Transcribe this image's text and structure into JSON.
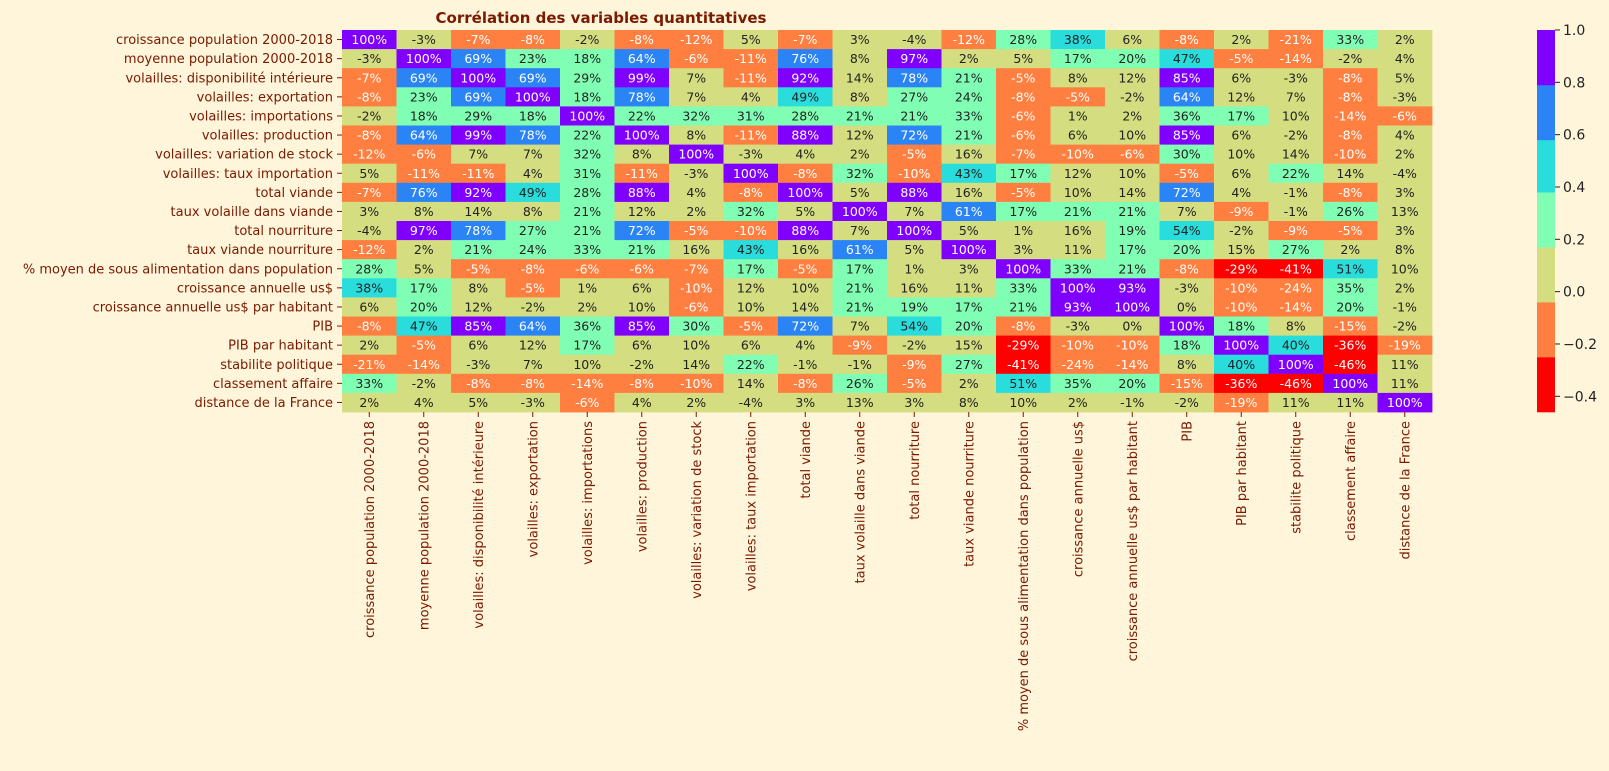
{
  "chart_data": {
    "type": "heatmap",
    "title": "Corrélation des variables quantitatives",
    "xlabel": "",
    "ylabel": "",
    "value_format": "percent",
    "label_color": "#7a1a00",
    "background": "#fff5da",
    "variables": [
      "croissance population 2000-2018",
      "moyenne population 2000-2018",
      "volailles: disponibilité intérieure",
      "volailles: exportation",
      "volailles: importations",
      "volailles: production",
      "volailles: variation de stock",
      "volailles: taux importation",
      "total viande",
      "taux volaille dans viande",
      "total nourriture",
      "taux viande nourriture",
      "% moyen de sous alimentation dans population",
      "croissance annuelle us$",
      "croissance annuelle us$ par habitant",
      "PIB",
      "PIB par habitant",
      "stabilite politique",
      "classement affaire",
      "distance de la France"
    ],
    "values": [
      [
        100,
        -3,
        -7,
        -8,
        -2,
        -8,
        -12,
        5,
        -7,
        3,
        -4,
        -12,
        28,
        38,
        6,
        -8,
        2,
        -21,
        33,
        2
      ],
      [
        -3,
        100,
        69,
        23,
        18,
        64,
        -6,
        -11,
        76,
        8,
        97,
        2,
        5,
        17,
        20,
        47,
        -5,
        -14,
        -2,
        4
      ],
      [
        -7,
        69,
        100,
        69,
        29,
        99,
        7,
        -11,
        92,
        14,
        78,
        21,
        -5,
        8,
        12,
        85,
        6,
        -3,
        -8,
        5
      ],
      [
        -8,
        23,
        69,
        100,
        18,
        78,
        7,
        4,
        49,
        8,
        27,
        24,
        -8,
        -5,
        -2,
        64,
        12,
        7,
        -8,
        -3
      ],
      [
        -2,
        18,
        29,
        18,
        100,
        22,
        32,
        31,
        28,
        21,
        21,
        33,
        -6,
        1,
        2,
        36,
        17,
        10,
        -14,
        -6
      ],
      [
        -8,
        64,
        99,
        78,
        22,
        100,
        8,
        -11,
        88,
        12,
        72,
        21,
        -6,
        6,
        10,
        85,
        6,
        -2,
        -8,
        4
      ],
      [
        -12,
        -6,
        7,
        7,
        32,
        8,
        100,
        -3,
        4,
        2,
        -5,
        16,
        -7,
        -10,
        -6,
        30,
        10,
        14,
        -10,
        2
      ],
      [
        5,
        -11,
        -11,
        4,
        31,
        -11,
        -3,
        100,
        -8,
        32,
        -10,
        43,
        17,
        12,
        10,
        -5,
        6,
        22,
        14,
        -4
      ],
      [
        -7,
        76,
        92,
        49,
        28,
        88,
        4,
        -8,
        100,
        5,
        88,
        16,
        -5,
        10,
        14,
        72,
        4,
        -1,
        -8,
        3
      ],
      [
        3,
        8,
        14,
        8,
        21,
        12,
        2,
        32,
        5,
        100,
        7,
        61,
        17,
        21,
        21,
        7,
        -9,
        -1,
        26,
        13
      ],
      [
        -4,
        97,
        78,
        27,
        21,
        72,
        -5,
        -10,
        88,
        7,
        100,
        5,
        1,
        16,
        19,
        54,
        -2,
        -9,
        -5,
        3
      ],
      [
        -12,
        2,
        21,
        24,
        33,
        21,
        16,
        43,
        16,
        61,
        5,
        100,
        3,
        11,
        17,
        20,
        15,
        27,
        2,
        8
      ],
      [
        28,
        5,
        -5,
        -8,
        -6,
        -6,
        -7,
        17,
        -5,
        17,
        1,
        3,
        100,
        33,
        21,
        -8,
        -29,
        -41,
        51,
        10
      ],
      [
        38,
        17,
        8,
        -5,
        1,
        6,
        -10,
        12,
        10,
        21,
        16,
        11,
        33,
        100,
        93,
        -3,
        -10,
        -24,
        35,
        2
      ],
      [
        6,
        20,
        12,
        -2,
        2,
        10,
        -6,
        10,
        14,
        21,
        19,
        17,
        21,
        93,
        100,
        0,
        -10,
        -14,
        20,
        -1
      ],
      [
        -8,
        47,
        85,
        64,
        36,
        85,
        30,
        -5,
        72,
        7,
        54,
        20,
        -8,
        -3,
        0,
        100,
        18,
        8,
        -15,
        -2
      ],
      [
        2,
        -5,
        6,
        12,
        17,
        6,
        10,
        6,
        4,
        -9,
        -2,
        15,
        -29,
        -10,
        -10,
        18,
        100,
        40,
        -36,
        -19
      ],
      [
        -21,
        -14,
        -3,
        7,
        10,
        -2,
        14,
        22,
        -1,
        -1,
        -9,
        27,
        -41,
        -24,
        -14,
        8,
        40,
        100,
        -46,
        11
      ],
      [
        33,
        -2,
        -8,
        -8,
        -14,
        -8,
        -10,
        14,
        -8,
        26,
        -5,
        2,
        51,
        35,
        20,
        -15,
        -36,
        -46,
        100,
        11
      ],
      [
        2,
        4,
        5,
        -3,
        -6,
        4,
        2,
        -4,
        3,
        13,
        3,
        8,
        10,
        2,
        -1,
        -2,
        -19,
        11,
        11,
        100
      ]
    ],
    "colorbar": {
      "vmin": -0.46,
      "vmax": 1.0,
      "ticks": [
        "1.0",
        "0.8",
        "0.6",
        "0.4",
        "0.2",
        "0.0",
        "−0.2",
        "−0.4"
      ],
      "tick_values": [
        1.0,
        0.8,
        0.6,
        0.4,
        0.2,
        0.0,
        -0.2,
        -0.4
      ],
      "bins": [
        {
          "from": -0.46,
          "to": -0.25,
          "color": "#ff0000"
        },
        {
          "from": -0.25,
          "to": -0.04,
          "color": "#ff7f40"
        },
        {
          "from": -0.04,
          "to": 0.17,
          "color": "#d4dd80"
        },
        {
          "from": 0.17,
          "to": 0.38,
          "color": "#80ffb4"
        },
        {
          "from": 0.38,
          "to": 0.58,
          "color": "#2adddd"
        },
        {
          "from": 0.58,
          "to": 0.79,
          "color": "#2a84f6"
        },
        {
          "from": 0.79,
          "to": 1.0,
          "color": "#8000ff"
        }
      ]
    }
  }
}
